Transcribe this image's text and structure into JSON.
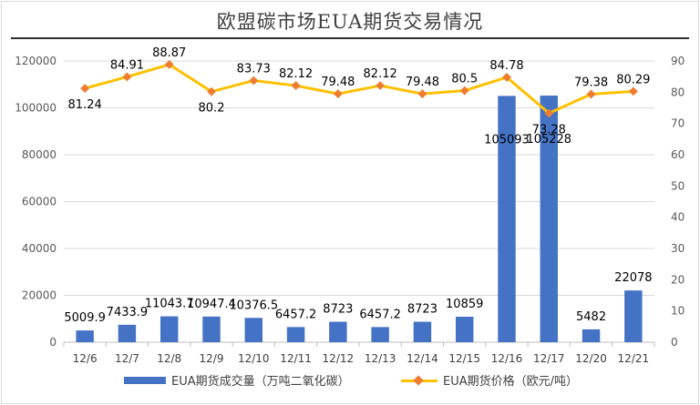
{
  "chart_data": {
    "type": "bar+line",
    "title": "欧盟碳市场EUA期货交易情况",
    "categories": [
      "12/6",
      "12/7",
      "12/8",
      "12/9",
      "12/10",
      "12/11",
      "12/12",
      "12/13",
      "12/14",
      "12/15",
      "12/16",
      "12/17",
      "12/20",
      "12/21"
    ],
    "series": [
      {
        "name": "EUA期货成交量（万吨二氧化碳）",
        "type": "bar",
        "axis": "left",
        "color": "#4472c4",
        "values": [
          5009.9,
          7433.9,
          11043.7,
          10947.4,
          10376.5,
          6457.2,
          8723,
          6457.2,
          8723,
          10859,
          105093,
          105228,
          5482,
          22078
        ],
        "labels": [
          "5009.9",
          "7433.9",
          "11043.7",
          "10947.4",
          "10376.5",
          "6457.2",
          "8723",
          "6457.2",
          "8723",
          "10859",
          "105093",
          "105228",
          "5482",
          "22078"
        ]
      },
      {
        "name": "EUA期货价格（欧元/吨）",
        "type": "line",
        "axis": "right",
        "color": "#ffc000",
        "marker_color": "#ed7d31",
        "values": [
          81.24,
          84.91,
          88.87,
          80.2,
          83.73,
          82.12,
          79.48,
          82.12,
          79.48,
          80.5,
          84.78,
          73.28,
          79.38,
          80.29
        ],
        "labels": [
          "81.24",
          "84.91",
          "88.87",
          "80.2",
          "83.73",
          "82.12",
          "79.48",
          "82.12",
          "79.48",
          "80.5",
          "84.78",
          "73.28",
          "79.38",
          "80.29"
        ]
      }
    ],
    "y_left": {
      "min": 0,
      "max": 120000,
      "ticks": [
        "0",
        "20000",
        "40000",
        "60000",
        "80000",
        "100000",
        "120000"
      ]
    },
    "y_right": {
      "min": 0,
      "max": 90,
      "ticks": [
        "0",
        "10",
        "20",
        "30",
        "40",
        "50",
        "60",
        "70",
        "80",
        "90"
      ]
    },
    "grid": true,
    "legend_position": "bottom"
  }
}
